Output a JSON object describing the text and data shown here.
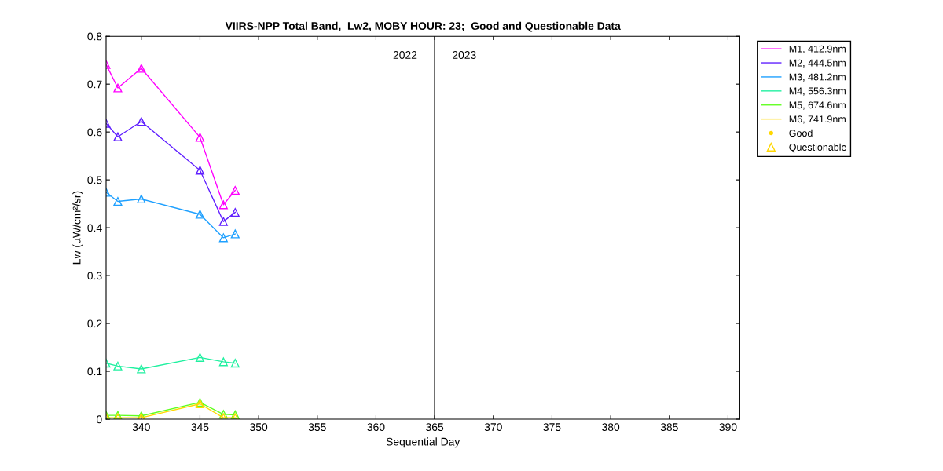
{
  "chart_data": {
    "type": "line",
    "title": "VIIRS-NPP Total Band,  Lw2, MOBY HOUR: 23;  Good and Questionable Data",
    "xlabel": "Sequential Day",
    "ylabel": "Lw (µW/cm²/sr)",
    "x": [
      337,
      338,
      340,
      345,
      347,
      348
    ],
    "series": [
      {
        "name": "M1, 412.9nm",
        "color": "#ff00ff",
        "marker": "triangle",
        "values": [
          0.741,
          0.692,
          0.733,
          0.589,
          0.448,
          0.478
        ]
      },
      {
        "name": "M2, 444.5nm",
        "color": "#6020ff",
        "marker": "triangle",
        "values": [
          0.618,
          0.59,
          0.622,
          0.52,
          0.413,
          0.432
        ]
      },
      {
        "name": "M3, 481.2nm",
        "color": "#1ea0ff",
        "marker": "triangle",
        "values": [
          0.474,
          0.455,
          0.46,
          0.428,
          0.379,
          0.387
        ]
      },
      {
        "name": "M4, 556.3nm",
        "color": "#20f0a0",
        "marker": "triangle",
        "values": [
          0.117,
          0.111,
          0.105,
          0.129,
          0.12,
          0.117
        ]
      },
      {
        "name": "M5, 674.6nm",
        "color": "#60ff20",
        "marker": "triangle",
        "values": [
          0.008,
          0.008,
          0.007,
          0.035,
          0.01,
          0.009
        ]
      },
      {
        "name": "M6, 741.9nm",
        "color": "#ffd700",
        "marker": "triangle",
        "values": [
          0.003,
          0.003,
          0.003,
          0.032,
          0.003,
          0.003
        ]
      },
      {
        "name": "Good",
        "type": "scatter",
        "color": "#ffd700",
        "marker": "circle",
        "values": [
          null,
          null,
          null,
          null,
          null,
          null
        ]
      },
      {
        "name": "Questionable",
        "type": "scatter",
        "color": "#ffd700",
        "marker": "triangle",
        "values": [
          null,
          null,
          null,
          null,
          null,
          null
        ]
      }
    ],
    "xlim": [
      337,
      391
    ],
    "xticks": [
      340,
      345,
      350,
      355,
      360,
      365,
      370,
      375,
      380,
      385,
      390
    ],
    "ylim": [
      0,
      0.8
    ],
    "yticks": [
      0,
      0.1,
      0.2,
      0.3,
      0.4,
      0.5,
      0.6,
      0.7,
      0.8
    ],
    "ref_lines": [
      {
        "axis": "x",
        "value": 365,
        "color": "#000000"
      }
    ],
    "annotations": [
      "2022",
      "2023"
    ],
    "grid": false,
    "legend": "top right"
  }
}
